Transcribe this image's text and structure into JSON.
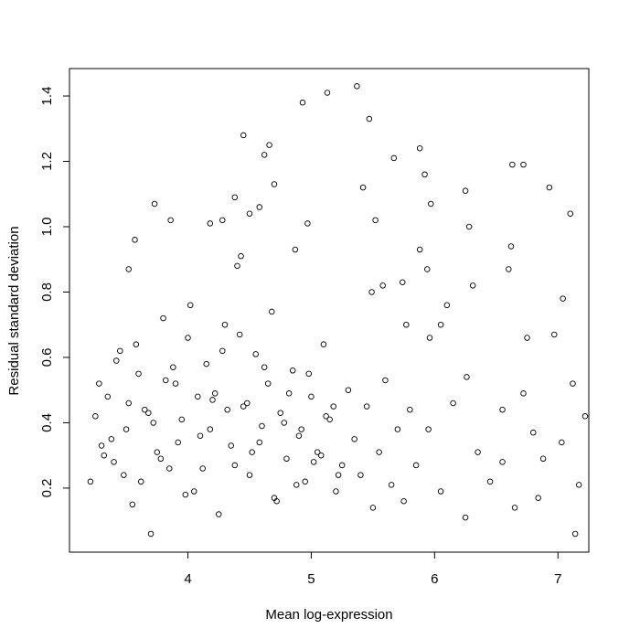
{
  "chart_data": {
    "type": "scatter",
    "x_label": "Mean log-expression",
    "y_label": "Residual standard deviation",
    "color": "#000000",
    "xlim": [
      3.04,
      7.25
    ],
    "ylim": [
      0.004,
      1.484
    ],
    "xticks": [
      4,
      5,
      6,
      7
    ],
    "yticks": [
      0.2,
      0.4,
      0.6,
      0.8,
      {
        "value": 1,
        "label": "1.0"
      },
      1.2,
      1.4
    ],
    "x": [
      5.37,
      5.13,
      4.93,
      5.47,
      4.45,
      4.66,
      4.62,
      5.88,
      5.67,
      6.63,
      6.72,
      5.92,
      6.93,
      5.42,
      6.25,
      4.7,
      4.38,
      3.73,
      5.97,
      7.1,
      6.28,
      5.52,
      4.97,
      4.28,
      4.18,
      3.86,
      4.5,
      4.58,
      3.57,
      6.62,
      5.88,
      4.87,
      6.6,
      3.52,
      5.94,
      4.43,
      7.04,
      6.31,
      6.1,
      6.75,
      6.97,
      7.12,
      7.22,
      7.14,
      7.17,
      6.84,
      7.03,
      6.88,
      6.55,
      6.72,
      6.26,
      5.96,
      6.05,
      5.77,
      5.58,
      5.49,
      5.74,
      3.21,
      3.25,
      3.3,
      3.35,
      3.4,
      3.45,
      3.5,
      3.55,
      3.6,
      3.65,
      3.7,
      3.75,
      3.8,
      3.85,
      3.9,
      3.95,
      4.0,
      4.05,
      4.1,
      4.15,
      4.2,
      4.25,
      4.3,
      4.35,
      4.4,
      4.45,
      4.5,
      4.55,
      4.6,
      4.65,
      4.7,
      4.75,
      4.8,
      4.85,
      4.9,
      4.95,
      5.0,
      5.05,
      5.1,
      5.15,
      5.2,
      5.25,
      5.3,
      5.35,
      5.4,
      5.45,
      5.5,
      5.55,
      5.6,
      5.65,
      5.7,
      5.75,
      5.8,
      3.28,
      3.38,
      3.48,
      3.58,
      3.68,
      3.78,
      3.88,
      3.98,
      4.08,
      4.18,
      4.28,
      4.38,
      4.48,
      4.58,
      4.68,
      4.78,
      4.88,
      4.98,
      5.08,
      5.18,
      3.32,
      3.42,
      3.52,
      3.62,
      3.72,
      3.82,
      3.92,
      4.02,
      4.12,
      4.22,
      4.32,
      4.42,
      4.52,
      4.62,
      4.72,
      4.82,
      4.92,
      5.02,
      5.12,
      5.22,
      5.85,
      5.95,
      6.05,
      6.15,
      6.25,
      6.35,
      6.45,
      6.55,
      6.65,
      6.8
    ],
    "values": [
      1.43,
      1.41,
      1.38,
      1.33,
      1.28,
      1.25,
      1.22,
      1.24,
      1.21,
      1.19,
      1.19,
      1.16,
      1.12,
      1.12,
      1.11,
      1.13,
      1.09,
      1.07,
      1.07,
      1.04,
      1.0,
      1.02,
      1.01,
      1.02,
      1.01,
      1.02,
      1.04,
      1.06,
      0.96,
      0.94,
      0.93,
      0.93,
      0.87,
      0.87,
      0.87,
      0.91,
      0.78,
      0.82,
      0.76,
      0.66,
      0.67,
      0.52,
      0.42,
      0.06,
      0.21,
      0.17,
      0.34,
      0.29,
      0.44,
      0.49,
      0.54,
      0.66,
      0.7,
      0.7,
      0.82,
      0.8,
      0.83,
      0.22,
      0.42,
      0.33,
      0.48,
      0.28,
      0.62,
      0.38,
      0.15,
      0.55,
      0.44,
      0.06,
      0.31,
      0.72,
      0.26,
      0.52,
      0.41,
      0.66,
      0.19,
      0.36,
      0.58,
      0.47,
      0.12,
      0.7,
      0.33,
      0.88,
      0.45,
      0.24,
      0.61,
      0.39,
      0.52,
      0.17,
      0.43,
      0.29,
      0.56,
      0.36,
      0.22,
      0.48,
      0.31,
      0.64,
      0.41,
      0.19,
      0.27,
      0.5,
      0.35,
      0.24,
      0.45,
      0.14,
      0.31,
      0.53,
      0.21,
      0.38,
      0.16,
      0.44,
      0.52,
      0.35,
      0.24,
      0.64,
      0.43,
      0.29,
      0.57,
      0.18,
      0.48,
      0.38,
      0.62,
      0.27,
      0.46,
      0.34,
      0.74,
      0.4,
      0.21,
      0.55,
      0.3,
      0.45,
      0.3,
      0.59,
      0.46,
      0.22,
      0.4,
      0.53,
      0.34,
      0.76,
      0.26,
      0.49,
      0.44,
      0.67,
      0.31,
      0.57,
      0.16,
      0.49,
      0.38,
      0.28,
      0.42,
      0.24,
      0.27,
      0.38,
      0.19,
      0.46,
      0.11,
      0.31,
      0.22,
      0.28,
      0.14,
      0.37
    ]
  }
}
